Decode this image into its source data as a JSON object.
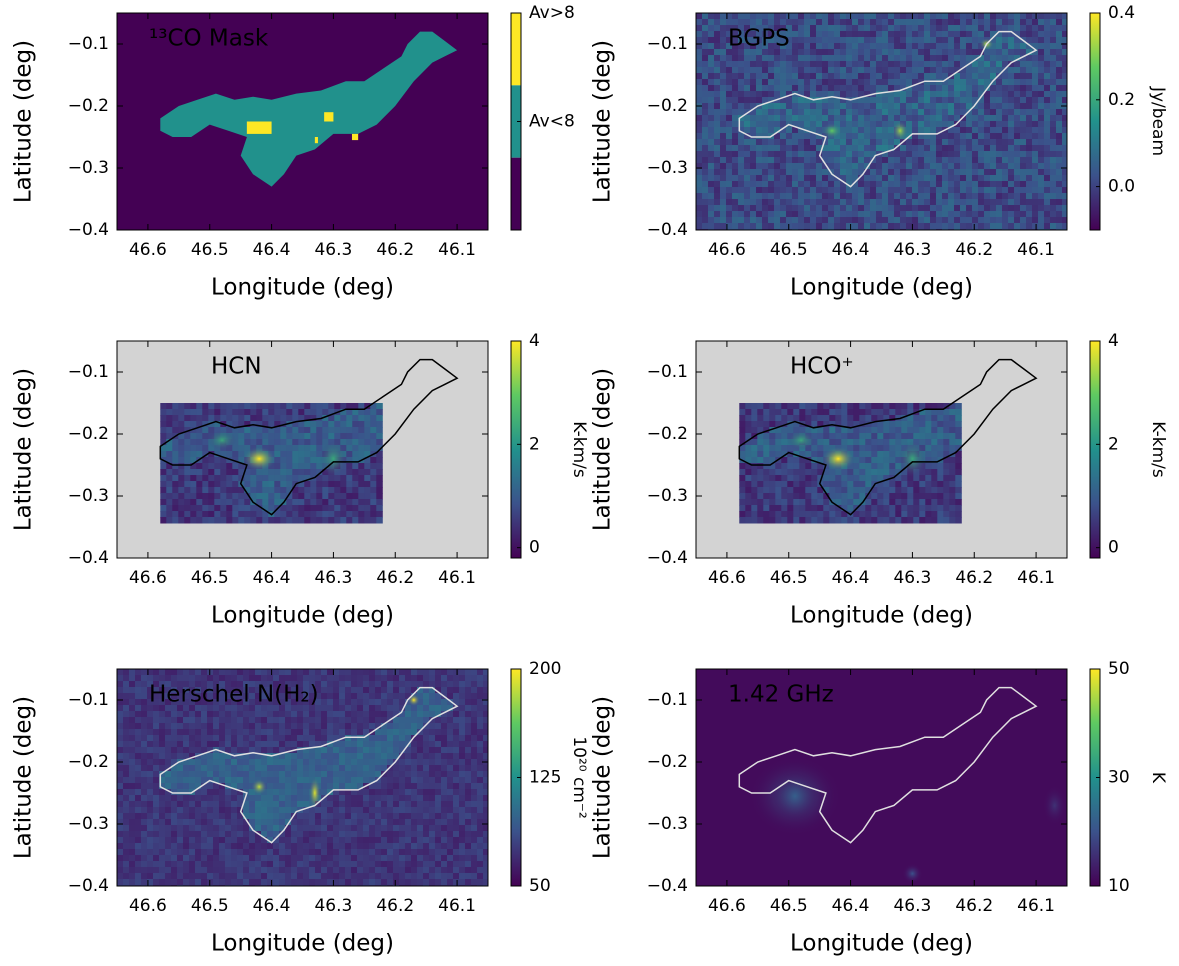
{
  "chart_data": [
    {
      "type": "heatmap",
      "title": "¹³CO Mask",
      "x_label": "Longitude (deg)",
      "y_label": "Latitude (deg)",
      "xlim": [
        46.65,
        46.05
      ],
      "xticks": [
        46.6,
        46.5,
        46.4,
        46.3,
        46.2,
        46.1
      ],
      "ylim": [
        -0.4,
        -0.05
      ],
      "yticks": [
        {
          "value": -0.4,
          "label": "−0.4"
        },
        {
          "value": -0.3,
          "label": "−0.3"
        },
        {
          "value": -0.2,
          "label": "−0.2"
        },
        {
          "value": -0.1,
          "label": "−0.1"
        }
      ],
      "colorbar": {
        "lim": [
          0,
          2
        ],
        "ticks": [
          {
            "value": 1,
            "label": "Av<8"
          },
          {
            "value": 2,
            "label": "Av>8"
          }
        ]
      }
    },
    {
      "type": "heatmap",
      "title": "BGPS",
      "x_label": "Longitude (deg)",
      "y_label": "Latitude (deg)",
      "xlim": [
        46.65,
        46.05
      ],
      "xticks": [
        46.6,
        46.5,
        46.4,
        46.3,
        46.2,
        46.1
      ],
      "ylim": [
        -0.4,
        -0.05
      ],
      "yticks": [
        {
          "value": -0.4,
          "label": "−0.4"
        },
        {
          "value": -0.3,
          "label": "−0.3"
        },
        {
          "value": -0.2,
          "label": "−0.2"
        },
        {
          "value": -0.1,
          "label": "−0.1"
        }
      ],
      "colorbar": {
        "label": "Jy/beam",
        "lim": [
          -0.1,
          0.4
        ],
        "ticks": [
          {
            "value": 0,
            "label": "0.0"
          },
          0.2,
          0.4
        ]
      }
    },
    {
      "type": "heatmap",
      "title": "HCN",
      "x_label": "Longitude (deg)",
      "y_label": "Latitude (deg)",
      "xlim": [
        46.65,
        46.05
      ],
      "xticks": [
        46.6,
        46.5,
        46.4,
        46.3,
        46.2,
        46.1
      ],
      "ylim": [
        -0.4,
        -0.05
      ],
      "yticks": [
        {
          "value": -0.4,
          "label": "−0.4"
        },
        {
          "value": -0.3,
          "label": "−0.3"
        },
        {
          "value": -0.2,
          "label": "−0.2"
        },
        {
          "value": -0.1,
          "label": "−0.1"
        }
      ],
      "colorbar": {
        "label": "K-km/s",
        "lim": [
          -0.2,
          4
        ],
        "ticks": [
          0,
          2,
          4
        ]
      }
    },
    {
      "type": "heatmap",
      "title": "HCO⁺",
      "x_label": "Longitude (deg)",
      "y_label": "Latitude (deg)",
      "xlim": [
        46.65,
        46.05
      ],
      "xticks": [
        46.6,
        46.5,
        46.4,
        46.3,
        46.2,
        46.1
      ],
      "ylim": [
        -0.4,
        -0.05
      ],
      "yticks": [
        {
          "value": -0.4,
          "label": "−0.4"
        },
        {
          "value": -0.3,
          "label": "−0.3"
        },
        {
          "value": -0.2,
          "label": "−0.2"
        },
        {
          "value": -0.1,
          "label": "−0.1"
        }
      ],
      "colorbar": {
        "label": "K-km/s",
        "lim": [
          -0.2,
          4
        ],
        "ticks": [
          0,
          2,
          4
        ]
      }
    },
    {
      "type": "heatmap",
      "title": "Herschel N(H₂)",
      "x_label": "Longitude (deg)",
      "y_label": "Latitude (deg)",
      "xlim": [
        46.65,
        46.05
      ],
      "xticks": [
        46.6,
        46.5,
        46.4,
        46.3,
        46.2,
        46.1
      ],
      "ylim": [
        -0.4,
        -0.05
      ],
      "yticks": [
        {
          "value": -0.4,
          "label": "−0.4"
        },
        {
          "value": -0.3,
          "label": "−0.3"
        },
        {
          "value": -0.2,
          "label": "−0.2"
        },
        {
          "value": -0.1,
          "label": "−0.1"
        }
      ],
      "colorbar": {
        "label": "10²⁰ cm⁻²",
        "lim": [
          50,
          200
        ],
        "ticks": [
          50,
          125,
          200
        ]
      }
    },
    {
      "type": "heatmap",
      "title": "1.42 GHz",
      "x_label": "Longitude (deg)",
      "y_label": "Latitude (deg)",
      "xlim": [
        46.65,
        46.05
      ],
      "xticks": [
        46.6,
        46.5,
        46.4,
        46.3,
        46.2,
        46.1
      ],
      "ylim": [
        -0.4,
        -0.05
      ],
      "yticks": [
        {
          "value": -0.4,
          "label": "−0.4"
        },
        {
          "value": -0.3,
          "label": "−0.3"
        },
        {
          "value": -0.2,
          "label": "−0.2"
        },
        {
          "value": -0.1,
          "label": "−0.1"
        }
      ],
      "colorbar": {
        "label": "K",
        "lim": [
          10,
          50
        ],
        "ticks": [
          10,
          30,
          50
        ]
      }
    }
  ]
}
